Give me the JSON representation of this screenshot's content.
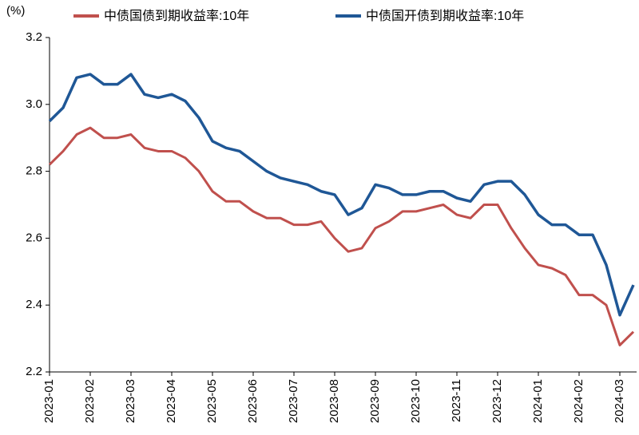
{
  "chart_data": {
    "type": "line",
    "y_label": "(%)",
    "categories": [
      "2023-01",
      null,
      null,
      "2023-02",
      null,
      null,
      "2023-03",
      null,
      null,
      "2023-04",
      null,
      null,
      "2023-05",
      null,
      null,
      "2023-06",
      null,
      null,
      "2023-07",
      null,
      null,
      "2023-08",
      null,
      null,
      "2023-09",
      null,
      null,
      "2023-10",
      null,
      null,
      "2023-11",
      null,
      null,
      "2023-12",
      null,
      null,
      "2024-01",
      null,
      null,
      "2024-02",
      null,
      null,
      "2024-03",
      null
    ],
    "series": [
      {
        "name": "中债国债到期收益率:10年",
        "color": "#c0504d",
        "values": [
          2.82,
          2.86,
          2.91,
          2.93,
          2.9,
          2.9,
          2.91,
          2.87,
          2.86,
          2.86,
          2.84,
          2.8,
          2.74,
          2.71,
          2.71,
          2.68,
          2.66,
          2.66,
          2.64,
          2.64,
          2.65,
          2.6,
          2.56,
          2.57,
          2.63,
          2.65,
          2.68,
          2.68,
          2.69,
          2.7,
          2.67,
          2.66,
          2.7,
          2.7,
          2.63,
          2.57,
          2.52,
          2.51,
          2.49,
          2.43,
          2.43,
          2.4,
          2.28,
          2.32
        ]
      },
      {
        "name": "中债国开债到期收益率:10年",
        "color": "#1f5796",
        "values": [
          2.95,
          2.99,
          3.08,
          3.09,
          3.06,
          3.06,
          3.09,
          3.03,
          3.02,
          3.03,
          3.01,
          2.96,
          2.89,
          2.87,
          2.86,
          2.83,
          2.8,
          2.78,
          2.77,
          2.76,
          2.74,
          2.73,
          2.67,
          2.69,
          2.76,
          2.75,
          2.73,
          2.73,
          2.74,
          2.74,
          2.72,
          2.71,
          2.76,
          2.77,
          2.77,
          2.73,
          2.67,
          2.64,
          2.64,
          2.61,
          2.61,
          2.52,
          2.37,
          2.46
        ]
      }
    ],
    "ylim": [
      2.2,
      3.2
    ],
    "yticks": [
      2.2,
      2.4,
      2.6,
      2.8,
      {
        "value": 3,
        "label": "3.0"
      },
      3.2
    ]
  }
}
